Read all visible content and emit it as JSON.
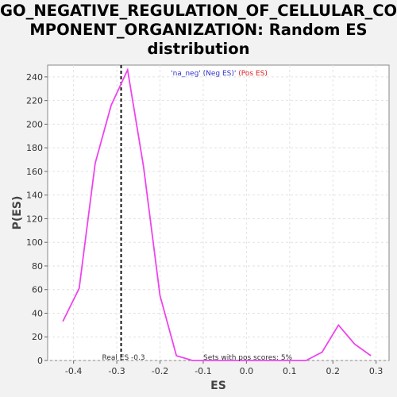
{
  "chart_data": {
    "type": "line",
    "title_lines": [
      "GO_NEGATIVE_REGULATION_OF_CELLULAR_CO",
      "MPONENT_ORGANIZATION: Random ES",
      "distribution"
    ],
    "xlabel": "ES",
    "ylabel": "P(ES)",
    "xlim": [
      -0.46,
      0.33
    ],
    "ylim": [
      0,
      250
    ],
    "x_ticks": [
      -0.4,
      -0.3,
      -0.2,
      -0.1,
      0.0,
      0.1,
      0.2,
      0.3
    ],
    "x_tick_labels": [
      "-0.4",
      "-0.3",
      "-0.2",
      "-0.1",
      "0.0",
      "0.1",
      "0.2",
      "0.3"
    ],
    "y_ticks": [
      0,
      20,
      40,
      60,
      80,
      100,
      120,
      140,
      160,
      180,
      200,
      220,
      240
    ],
    "y_tick_labels": [
      "0",
      "20",
      "40",
      "60",
      "80",
      "100",
      "120",
      "140",
      "160",
      "180",
      "200",
      "220",
      "240"
    ],
    "grid": true,
    "series": [
      {
        "color": "#ee44ee",
        "x": [
          -0.425,
          -0.387,
          -0.35,
          -0.313,
          -0.275,
          -0.238,
          -0.2,
          -0.162,
          -0.125,
          -0.088,
          -0.05,
          -0.012,
          0.025,
          0.063,
          0.1,
          0.138,
          0.175,
          0.213,
          0.25,
          0.288
        ],
        "y": [
          33,
          61,
          167,
          216,
          246,
          164,
          55,
          4,
          0,
          0,
          0,
          0,
          0,
          0,
          0,
          0,
          7,
          30,
          14,
          4
        ]
      }
    ],
    "real_es": -0.29,
    "annotations": {
      "real_es_label": "Real ES -0.3",
      "pos_scores_label": "Sets with pos scores: 5%"
    },
    "legend": {
      "position": "top-center",
      "neg_label": "'na_neg' (Neg ES)'",
      "pos_label": " (Pos ES)",
      "neg_color": "#3333cc",
      "pos_color": "#dd2222"
    }
  }
}
